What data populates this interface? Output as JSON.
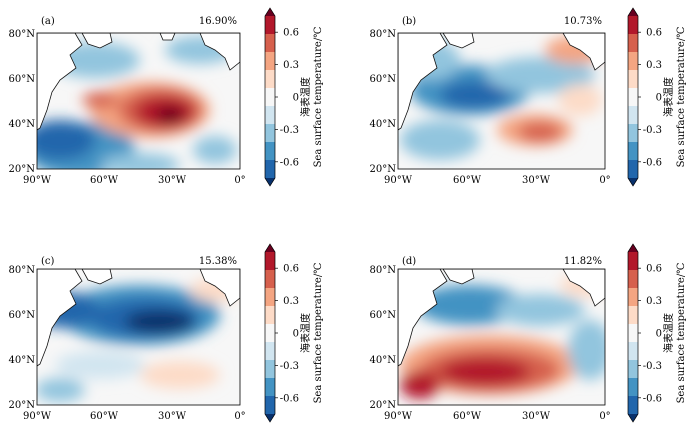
{
  "colorbar": {
    "title_cn": "海表温度",
    "title_en": "Sea surface temperature/℃",
    "ticks": [
      "0.6",
      "0.3",
      "0",
      "-0.3",
      "-0.6"
    ],
    "tick_values": [
      0.6,
      0.3,
      0,
      -0.3,
      -0.6
    ],
    "range": [
      -0.75,
      0.75
    ],
    "colors": [
      "#08306b",
      "#2166ac",
      "#4393c3",
      "#92c5de",
      "#d1e5f0",
      "#f7f7f7",
      "#fddbc7",
      "#f4a582",
      "#d6604d",
      "#b2182b",
      "#67001f"
    ]
  },
  "axes": {
    "lat_ticks": [
      "80°N",
      "60°N",
      "40°N",
      "20°N"
    ],
    "lon_ticks": [
      "90°W",
      "60°W",
      "30°W",
      "0°"
    ]
  },
  "panels": [
    {
      "label": "(a)",
      "variance": "16.90%",
      "pattern": "positive mid-latitude core near 40°N 35°W, negative along coast and subtropics"
    },
    {
      "label": "(b)",
      "variance": "10.73%",
      "pattern": "negative subpolar, positive patch near 33°N 35°W and northeast"
    },
    {
      "label": "(c)",
      "variance": "15.38%",
      "pattern": "strong negative subpolar gyre, weak positive subtropics"
    },
    {
      "label": "(d)",
      "variance": "11.82%",
      "pattern": "strong positive subtropics, negative subpolar"
    }
  ]
}
